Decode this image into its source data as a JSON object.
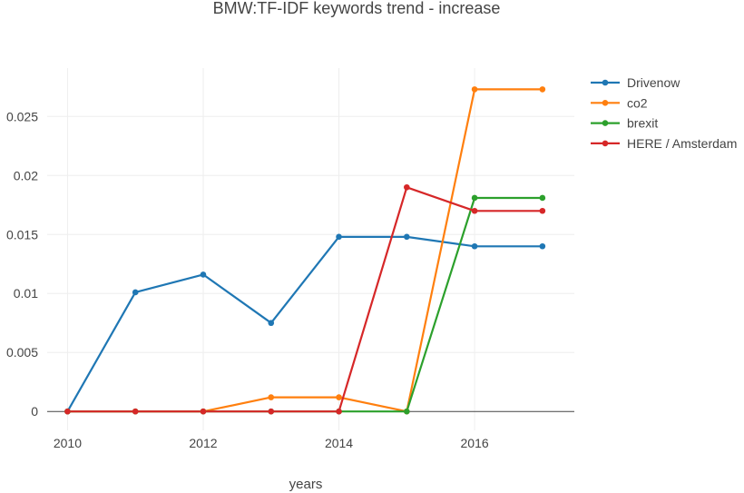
{
  "chart_data": {
    "type": "line",
    "title": "BMW:TF-IDF keywords trend - increase",
    "xlabel": "years",
    "ylabel": "",
    "x": [
      2010,
      2011,
      2012,
      2013,
      2014,
      2015,
      2016,
      2017
    ],
    "xlim": [
      2009.7,
      2017.47
    ],
    "ylim": [
      -0.0016,
      0.0291
    ],
    "x_ticks": [
      2010,
      2012,
      2014,
      2016
    ],
    "x_tick_labels": [
      "2010",
      "2012",
      "2014",
      "2016"
    ],
    "y_ticks": [
      0,
      0.005,
      0.01,
      0.015,
      0.02,
      0.025
    ],
    "y_tick_labels": [
      "0",
      "0.005",
      "0.01",
      "0.015",
      "0.02",
      "0.025"
    ],
    "grid": true,
    "legend_position": "top-right",
    "series": [
      {
        "name": "Drivenow",
        "color": "#1f77b4",
        "values": [
          0,
          0.0101,
          0.0116,
          0.0075,
          0.0148,
          0.0148,
          0.014,
          0.014
        ]
      },
      {
        "name": "co2",
        "color": "#ff7f0e",
        "values": [
          0,
          0,
          0,
          0.0012,
          0.0012,
          0,
          0.0273,
          0.0273
        ]
      },
      {
        "name": "brexit",
        "color": "#2ca02c",
        "values": [
          0,
          0,
          0,
          0,
          0,
          0,
          0.0181,
          0.0181
        ]
      },
      {
        "name": "HERE / Amsterdam",
        "color": "#d62728",
        "values": [
          0,
          0,
          0,
          0,
          0,
          0.019,
          0.017,
          0.017
        ]
      }
    ]
  }
}
